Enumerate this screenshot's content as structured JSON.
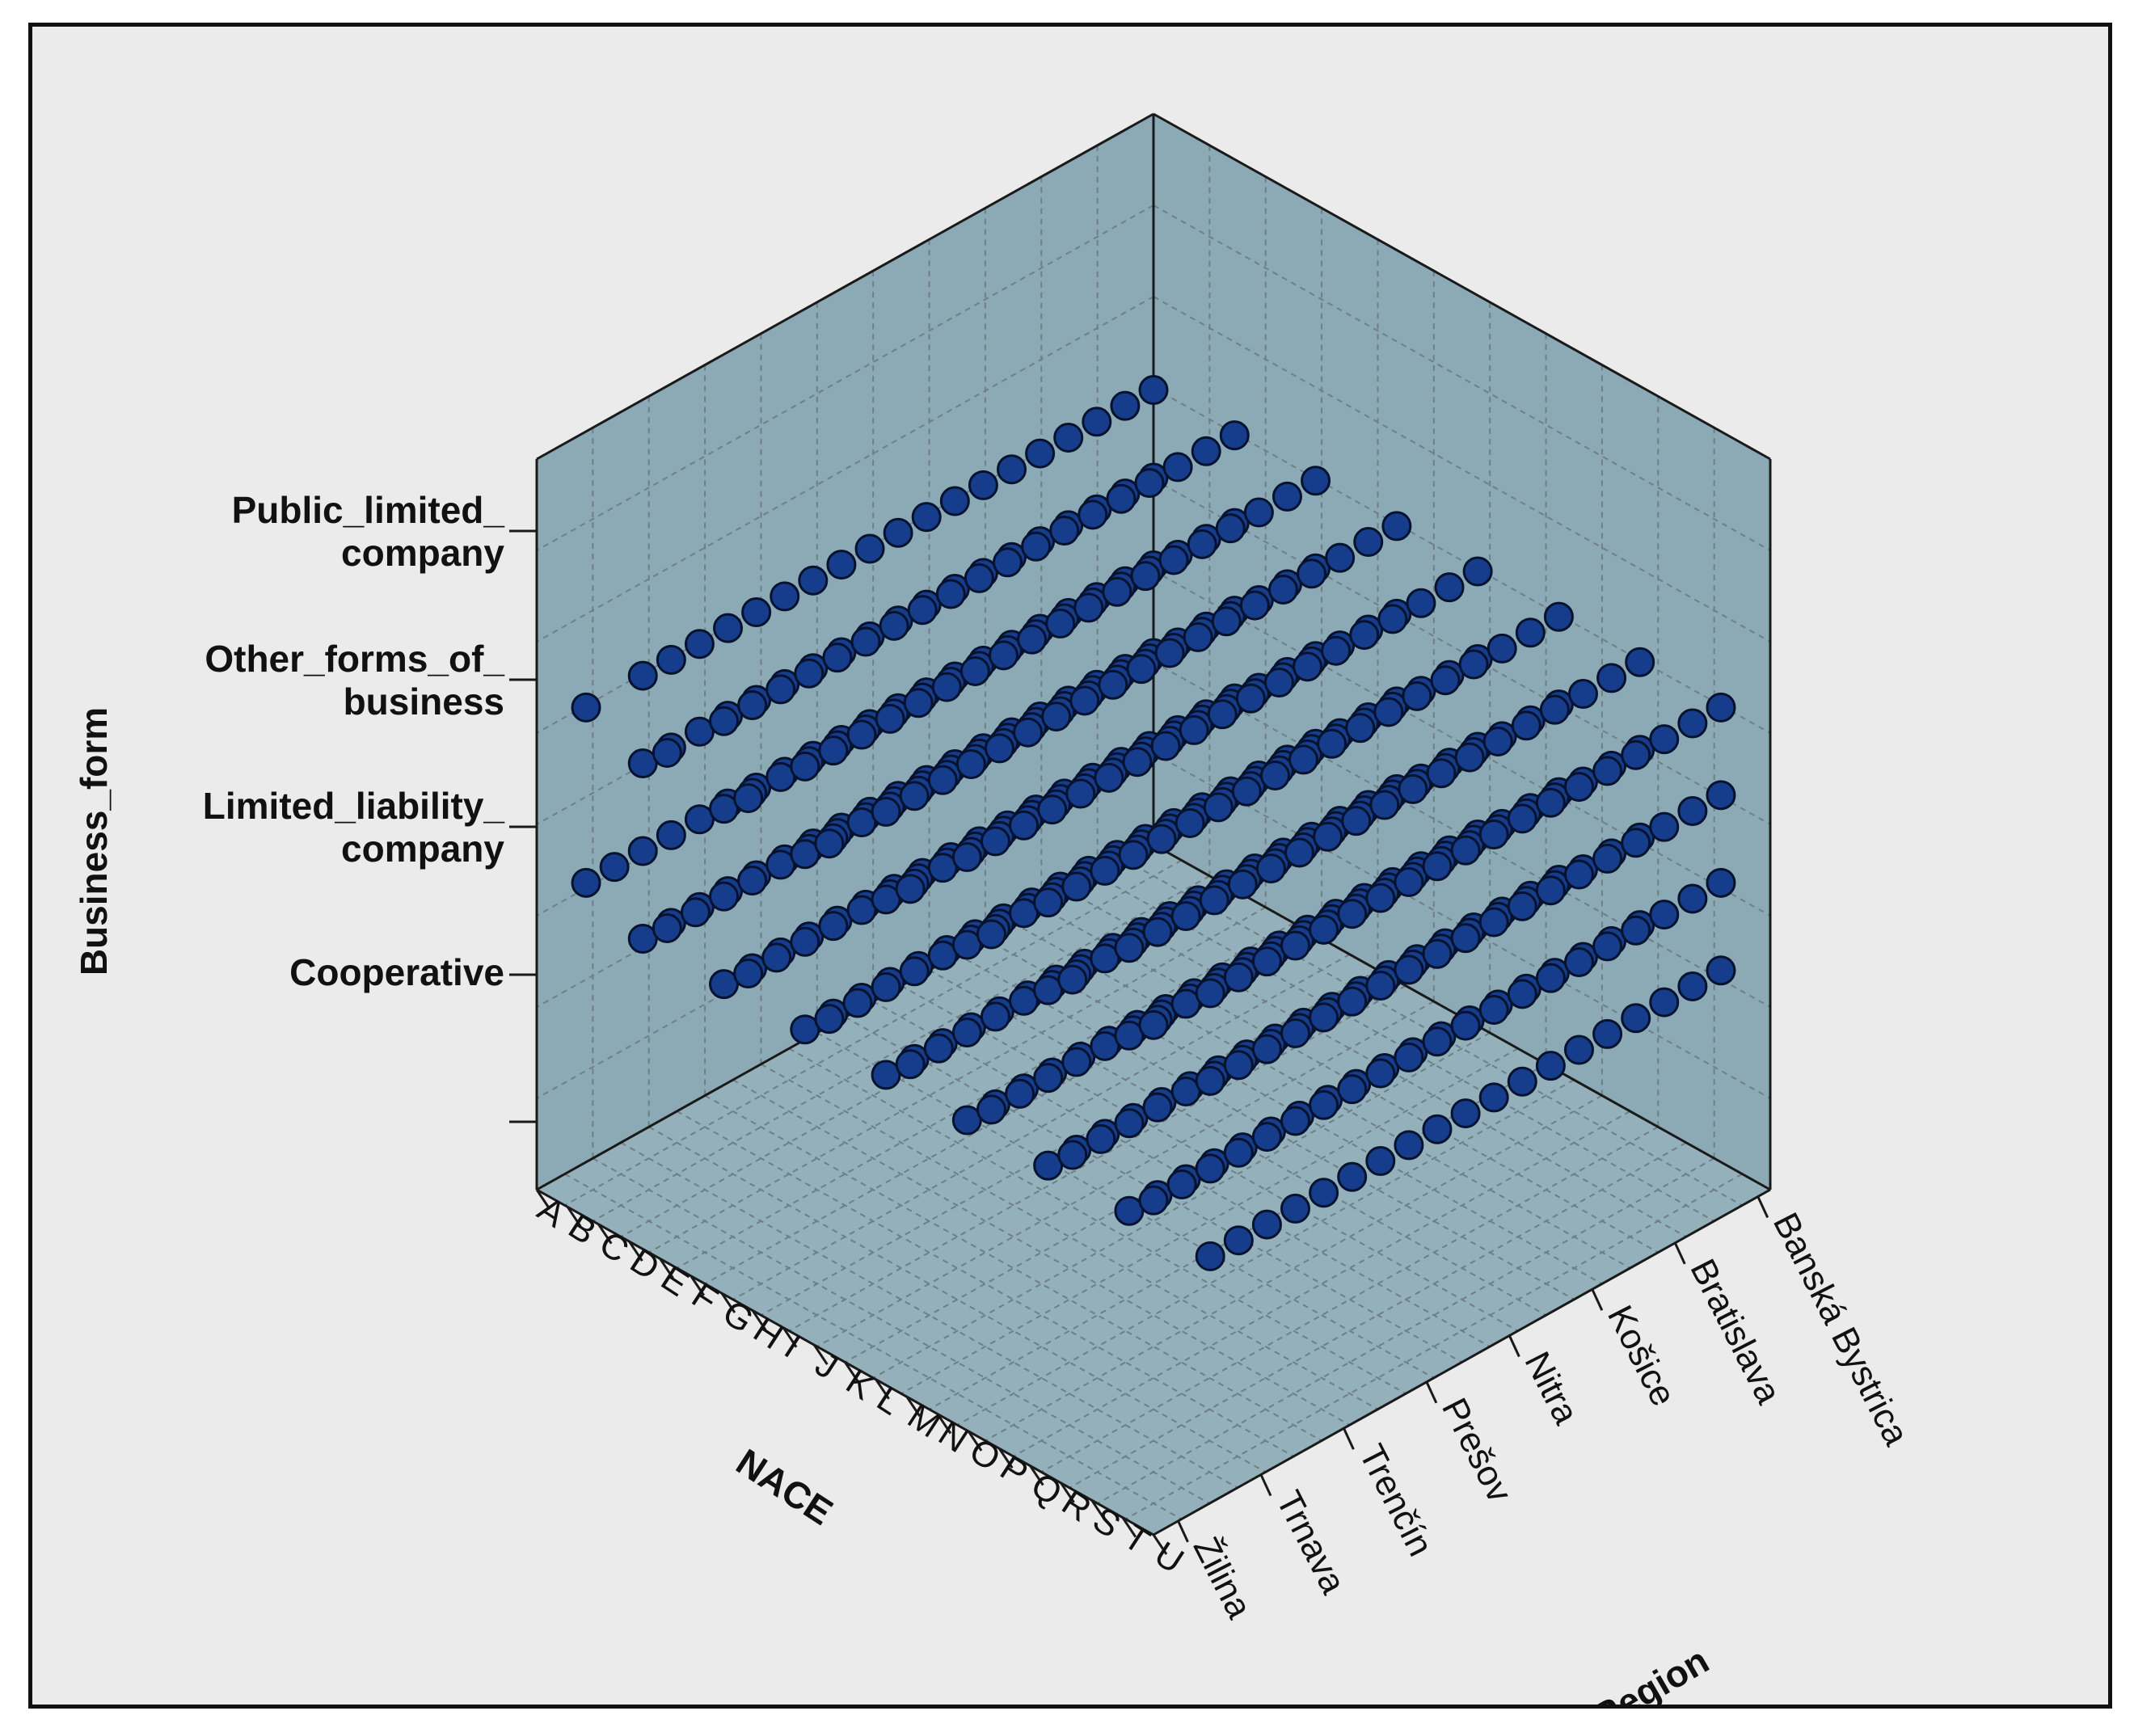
{
  "chart_data": {
    "type": "scatter3d",
    "title": "",
    "axes": {
      "vertical": {
        "label": "Business_form",
        "categories": [
          "",
          "Cooperative",
          "Limited_liability_company",
          "Other_forms_of_business",
          "Public_limited_company"
        ],
        "tick_text": [
          [
            ""
          ],
          [
            "Cooperative"
          ],
          [
            "Limited_liability_",
            "company"
          ],
          [
            "Other_forms_of_",
            "business"
          ],
          [
            "Public_limited_",
            "company"
          ]
        ]
      },
      "left_depth": {
        "label": "NACE",
        "categories": [
          "A",
          "B",
          "C",
          "D",
          "E",
          "F",
          "G",
          "H",
          "I",
          "J",
          "K",
          "L",
          "M",
          "N",
          "O",
          "P",
          "Q",
          "R",
          "S",
          "T",
          "U"
        ]
      },
      "right_depth": {
        "label": "Region",
        "categories": [
          "Žilina",
          "Trnava",
          "Trenčín",
          "Prešov",
          "Nitra",
          "Košice",
          "Bratislava",
          "Banská Bystrica"
        ]
      }
    },
    "points_note": "One point per combination of NACE section x Region x Business_form present in the data; grid reconstructed from the dense lattice shown.",
    "series": [
      {
        "name": "Public_limited_company",
        "nace_present": [
          "A",
          "B",
          "C",
          "D",
          "E",
          "F",
          "G",
          "H",
          "I",
          "J",
          "K",
          "L",
          "M",
          "N",
          "O",
          "P",
          "Q",
          "R",
          "S",
          "U"
        ],
        "regions_present": [
          "Žilina",
          "Trnava",
          "Trenčín",
          "Prešov",
          "Nitra",
          "Košice",
          "Bratislava",
          "Banská Bystrica"
        ]
      },
      {
        "name": "Other_forms_of_business",
        "nace_present": [
          "A",
          "B",
          "C",
          "D",
          "E",
          "F",
          "G",
          "H",
          "I",
          "J",
          "K",
          "L",
          "M",
          "N",
          "O",
          "P",
          "Q",
          "R",
          "S"
        ],
        "regions_present": [
          "Žilina",
          "Trnava",
          "Trenčín",
          "Prešov",
          "Nitra",
          "Košice",
          "Bratislava",
          "Banská Bystrica"
        ]
      },
      {
        "name": "Limited_liability_company",
        "nace_present": [
          "A",
          "B",
          "C",
          "D",
          "E",
          "F",
          "G",
          "H",
          "I",
          "J",
          "K",
          "L",
          "M",
          "N",
          "O",
          "P",
          "Q",
          "R",
          "S",
          "T",
          "U"
        ],
        "regions_present": [
          "Žilina",
          "Trnava",
          "Trenčín",
          "Prešov",
          "Nitra",
          "Košice",
          "Bratislava",
          "Banská Bystrica"
        ]
      },
      {
        "name": "Cooperative",
        "nace_present": [
          "A",
          "B",
          "C",
          "D",
          "E",
          "F",
          "G",
          "H",
          "I",
          "J",
          "K",
          "L",
          "M",
          "N",
          "O",
          "P",
          "Q",
          "R",
          "S"
        ],
        "regions_present": [
          "Žilina",
          "Trnava",
          "Trenčín",
          "Prešov",
          "Nitra",
          "Košice",
          "Bratislava",
          "Banská Bystrica"
        ]
      }
    ],
    "colors": {
      "panel": "#8caab5",
      "panel_alpha": "#93b0bb",
      "marker_fill": "#163d8c",
      "marker_stroke": "#06122e",
      "edge": "#1a1a1a",
      "grid": "#6f7f86",
      "background": "#ebebeb"
    }
  }
}
